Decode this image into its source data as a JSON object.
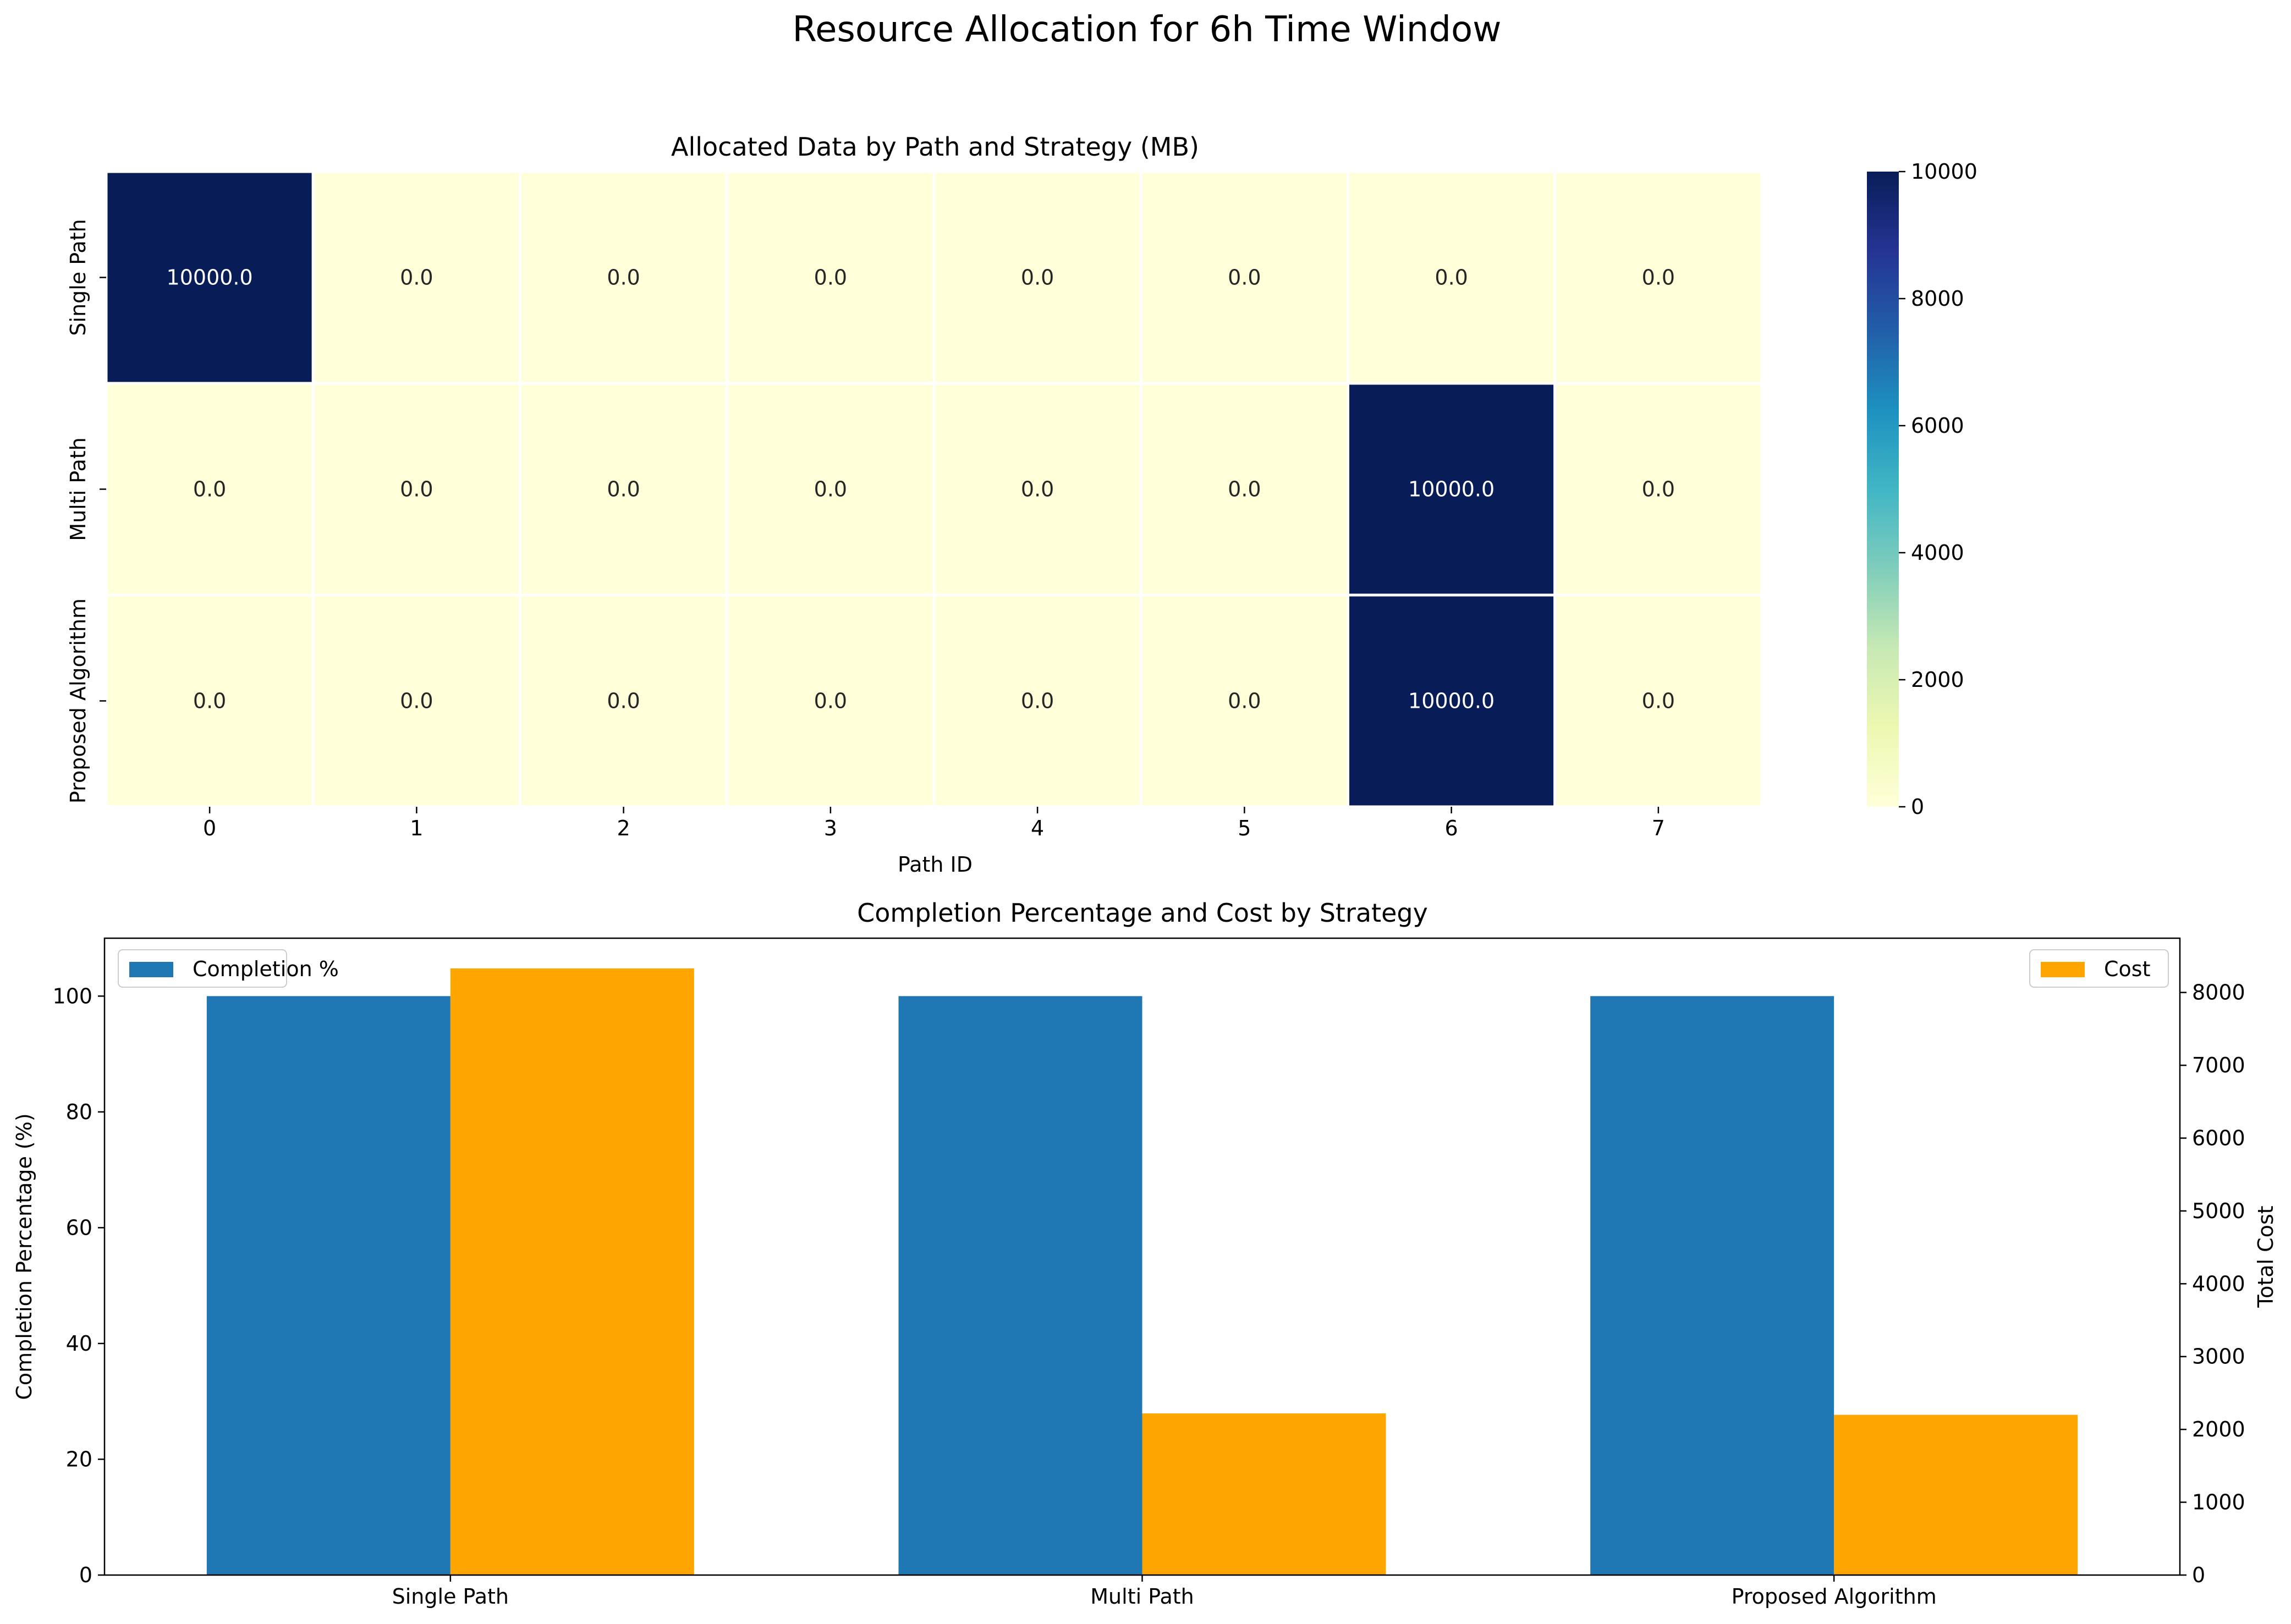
{
  "figure": {
    "title": "Resource Allocation for 6h Time Window"
  },
  "chart_data": [
    {
      "type": "heatmap",
      "title": "Allocated Data by Path and Strategy (MB)",
      "xlabel": "Path ID",
      "ylabel": "",
      "x_categories": [
        "0",
        "1",
        "2",
        "3",
        "4",
        "5",
        "6",
        "7"
      ],
      "y_categories": [
        "Single Path",
        "Multi Path",
        "Proposed Algorithm"
      ],
      "values": [
        [
          10000.0,
          0.0,
          0.0,
          0.0,
          0.0,
          0.0,
          0.0,
          0.0
        ],
        [
          0.0,
          0.0,
          0.0,
          0.0,
          0.0,
          0.0,
          10000.0,
          0.0
        ],
        [
          0.0,
          0.0,
          0.0,
          0.0,
          0.0,
          0.0,
          10000.0,
          0.0
        ]
      ],
      "annotations": [
        [
          "10000.0",
          "0.0",
          "0.0",
          "0.0",
          "0.0",
          "0.0",
          "0.0",
          "0.0"
        ],
        [
          "0.0",
          "0.0",
          "0.0",
          "0.0",
          "0.0",
          "0.0",
          "10000.0",
          "0.0"
        ],
        [
          "0.0",
          "0.0",
          "0.0",
          "0.0",
          "0.0",
          "0.0",
          "10000.0",
          "0.0"
        ]
      ],
      "colormap": "YlGnBu",
      "colorbar": {
        "range": [
          0,
          10000
        ],
        "ticks": [
          "0",
          "2000",
          "4000",
          "6000",
          "8000",
          "10000"
        ]
      }
    },
    {
      "type": "bar",
      "title": "Completion Percentage and Cost by Strategy",
      "categories": [
        "Single Path",
        "Multi Path",
        "Proposed Algorithm"
      ],
      "series": [
        {
          "name": "Completion %",
          "axis": "left",
          "color": "#1f77b4",
          "values": [
            100,
            100,
            100
          ]
        },
        {
          "name": "Cost",
          "axis": "right",
          "color": "#ffa500",
          "values": [
            8330,
            2220,
            2200
          ]
        }
      ],
      "ylabel": "Completion Percentage (%)",
      "ylim": [
        0,
        110
      ],
      "yticks": [
        "0",
        "20",
        "40",
        "60",
        "80",
        "100"
      ],
      "y2label": "Total Cost",
      "y2lim": [
        0,
        8745
      ],
      "y2ticks": [
        "0",
        "1000",
        "2000",
        "3000",
        "4000",
        "5000",
        "6000",
        "7000",
        "8000"
      ],
      "legend_left": "upper-left",
      "legend_right": "upper-right"
    }
  ]
}
